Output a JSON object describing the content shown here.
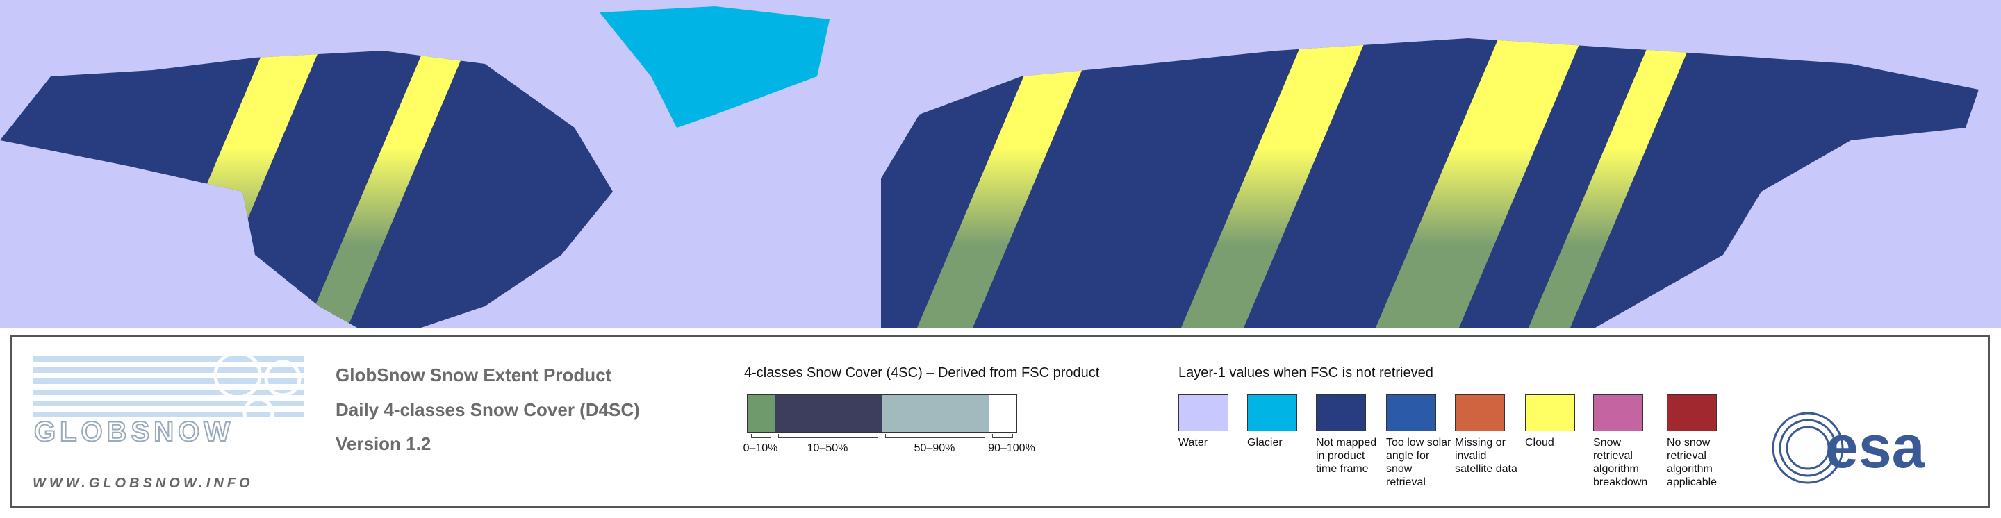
{
  "header": {
    "title": "GlobSnow Snow Extent Product",
    "subtitle": "Daily 4-classes Snow Cover (D4SC)",
    "version": "Version 1.2"
  },
  "logo": {
    "name": "GLOBSNOW",
    "url": "WWW.GLOBSNOW.INFO"
  },
  "legend_4sc": {
    "title": "4-classes Snow Cover (4SC) – Derived from FSC product",
    "classes": [
      {
        "label": "0–10%",
        "color": "#6f9a6b"
      },
      {
        "label": "10–50%",
        "color": "#3d3e5e"
      },
      {
        "label": "50–90%",
        "color": "#a2b9bd"
      },
      {
        "label": "90–100%",
        "color": "#ffffff"
      }
    ]
  },
  "legend_layer1": {
    "title": "Layer-1 values when FSC is not retrieved",
    "items": [
      {
        "label": "Water",
        "color": "#c8c8ff"
      },
      {
        "label": "Glacier",
        "color": "#00b4e6"
      },
      {
        "label": "Not mapped in product time frame",
        "color": "#283c80"
      },
      {
        "label": "Too low solar angle for snow retrieval",
        "color": "#2a5aa8"
      },
      {
        "label": "Missing or invalid satellite data",
        "color": "#d06440"
      },
      {
        "label": "Cloud",
        "color": "#ffff64"
      },
      {
        "label": "Snow retrieval algorithm breakdown",
        "color": "#c464a0"
      },
      {
        "label": "No snow retrieval algorithm applicable",
        "color": "#a0282e"
      }
    ]
  },
  "agency": "esa"
}
